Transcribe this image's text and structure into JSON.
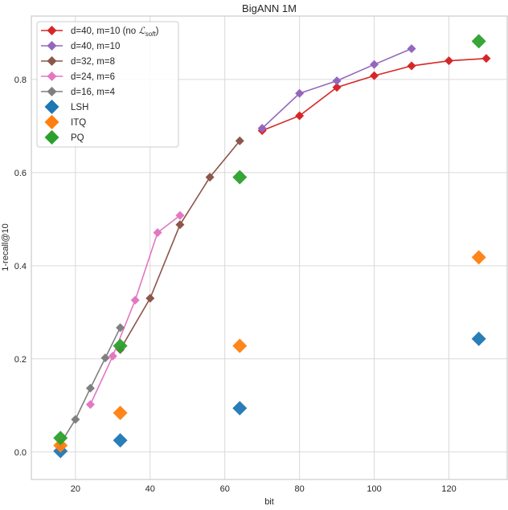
{
  "chart_data": {
    "type": "line",
    "title": "BigANN 1M",
    "xlabel": "bit",
    "ylabel": "1-recall@10",
    "xlim": [
      8.2,
      135.6
    ],
    "ylim": [
      -0.059,
      0.936
    ],
    "xticks": [
      20,
      40,
      60,
      80,
      100,
      120
    ],
    "yticks": [
      0.0,
      0.2,
      0.4,
      0.6,
      0.8
    ],
    "xtick_labels": [
      "20",
      "40",
      "60",
      "80",
      "100",
      "120"
    ],
    "ytick_labels": [
      "0.0",
      "0.2",
      "0.4",
      "0.6",
      "0.8"
    ],
    "grid": true,
    "legend_position": "top-left",
    "series": [
      {
        "name": "d=40, m=10 (no L_soft)",
        "legend_main": "d=40, m=10 (no ",
        "legend_math": "ℒ",
        "legend_sub": "soft",
        "legend_end": ")",
        "color": "#d62728",
        "kind": "line",
        "x": [
          70,
          80,
          90,
          100,
          110,
          120,
          130
        ],
        "y": [
          0.69,
          0.722,
          0.783,
          0.808,
          0.829,
          0.84,
          0.845
        ]
      },
      {
        "name": "d=40, m=10",
        "color": "#9467bd",
        "kind": "line",
        "x": [
          70,
          80,
          90,
          100,
          110
        ],
        "y": [
          0.695,
          0.77,
          0.797,
          0.832,
          0.866
        ]
      },
      {
        "name": "d=32, m=8",
        "color": "#8c564b",
        "kind": "line",
        "x": [
          32,
          40,
          48,
          56,
          64
        ],
        "y": [
          0.22,
          0.33,
          0.488,
          0.59,
          0.668
        ]
      },
      {
        "name": "d=24, m=6",
        "color": "#e377c2",
        "kind": "line",
        "x": [
          24,
          30,
          36,
          42,
          48
        ],
        "y": [
          0.102,
          0.206,
          0.326,
          0.471,
          0.508
        ]
      },
      {
        "name": "d=16, m=4",
        "color": "#7f7f7f",
        "kind": "line",
        "x": [
          16,
          20,
          24,
          28,
          32
        ],
        "y": [
          0.018,
          0.07,
          0.137,
          0.202,
          0.267
        ]
      },
      {
        "name": "LSH",
        "color": "#1f77b4",
        "kind": "scatter",
        "x": [
          16,
          32,
          64,
          128
        ],
        "y": [
          0.002,
          0.025,
          0.094,
          0.243
        ]
      },
      {
        "name": "ITQ",
        "color": "#ff7f0e",
        "kind": "scatter",
        "x": [
          16,
          32,
          64,
          128
        ],
        "y": [
          0.014,
          0.084,
          0.228,
          0.418
        ]
      },
      {
        "name": "PQ",
        "color": "#2ca02c",
        "kind": "scatter",
        "x": [
          16,
          32,
          64,
          128
        ],
        "y": [
          0.03,
          0.228,
          0.59,
          0.882
        ]
      }
    ]
  }
}
